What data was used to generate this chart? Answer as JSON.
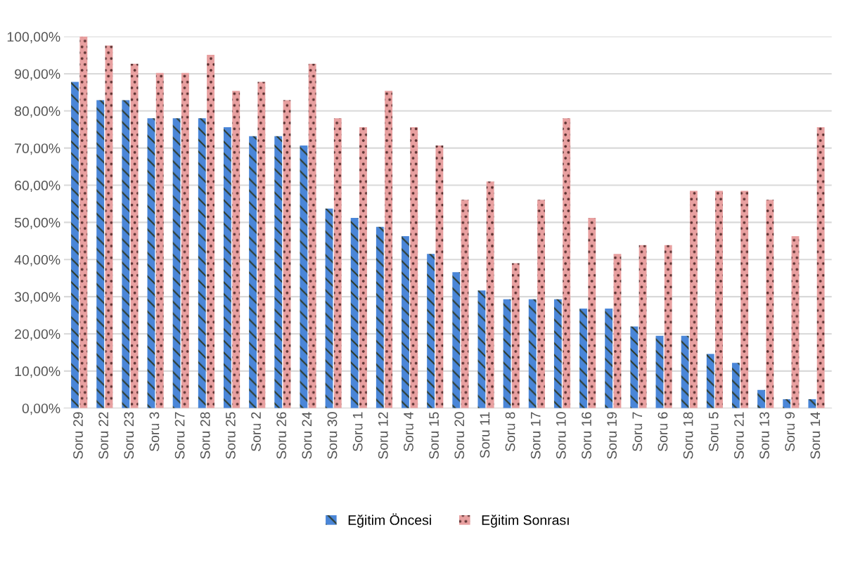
{
  "chart_data": {
    "type": "bar",
    "categories": [
      "Soru 29",
      "Soru 22",
      "Soru 23",
      "Soru 3",
      "Soru 27",
      "Soru 28",
      "Soru 25",
      "Soru 2",
      "Soru 26",
      "Soru 24",
      "Soru 30",
      "Soru 1",
      "Soru 12",
      "Soru 4",
      "Soru 15",
      "Soru 20",
      "Soru 11",
      "Soru 8",
      "Soru 17",
      "Soru 10",
      "Soru 16",
      "Soru 19",
      "Soru 7",
      "Soru 6",
      "Soru 18",
      "Soru 5",
      "Soru 21",
      "Soru 13",
      "Soru 9",
      "Soru 14"
    ],
    "series": [
      {
        "name": "Eğitim Öncesi",
        "color": "#4a86d8",
        "values": [
          87.8,
          82.9,
          82.9,
          78.0,
          78.0,
          78.0,
          75.6,
          73.2,
          73.2,
          70.7,
          53.7,
          51.2,
          48.8,
          46.3,
          41.5,
          36.6,
          31.7,
          29.3,
          29.3,
          29.3,
          26.8,
          26.8,
          22.0,
          19.5,
          19.5,
          14.6,
          12.2,
          4.9,
          2.4,
          2.4
        ]
      },
      {
        "name": "Eğitim Sonrası",
        "color": "#e8a0a0",
        "values": [
          100,
          97.6,
          92.7,
          90.2,
          90.2,
          95.1,
          85.4,
          87.8,
          82.9,
          92.7,
          78.0,
          75.6,
          85.4,
          75.6,
          70.7,
          56.1,
          61.0,
          39.0,
          56.1,
          78.0,
          51.2,
          41.5,
          43.9,
          43.9,
          58.5,
          58.5,
          58.5,
          56.1,
          46.3,
          75.6
        ]
      }
    ],
    "ylim": [
      0,
      100
    ],
    "yticks": [
      {
        "value": 0,
        "label": "0,00%"
      },
      {
        "value": 10,
        "label": "10,00%"
      },
      {
        "value": 20,
        "label": "20,00%"
      },
      {
        "value": 30,
        "label": "30,00%"
      },
      {
        "value": 40,
        "label": "40,00%"
      },
      {
        "value": 50,
        "label": "50,00%"
      },
      {
        "value": 60,
        "label": "60,00%"
      },
      {
        "value": 70,
        "label": "70,00%"
      },
      {
        "value": 80,
        "label": "80,00%"
      },
      {
        "value": 90,
        "label": "90,00%"
      },
      {
        "value": 100,
        "label": "100,00%"
      }
    ],
    "grid": "y",
    "legend": "bottom"
  }
}
